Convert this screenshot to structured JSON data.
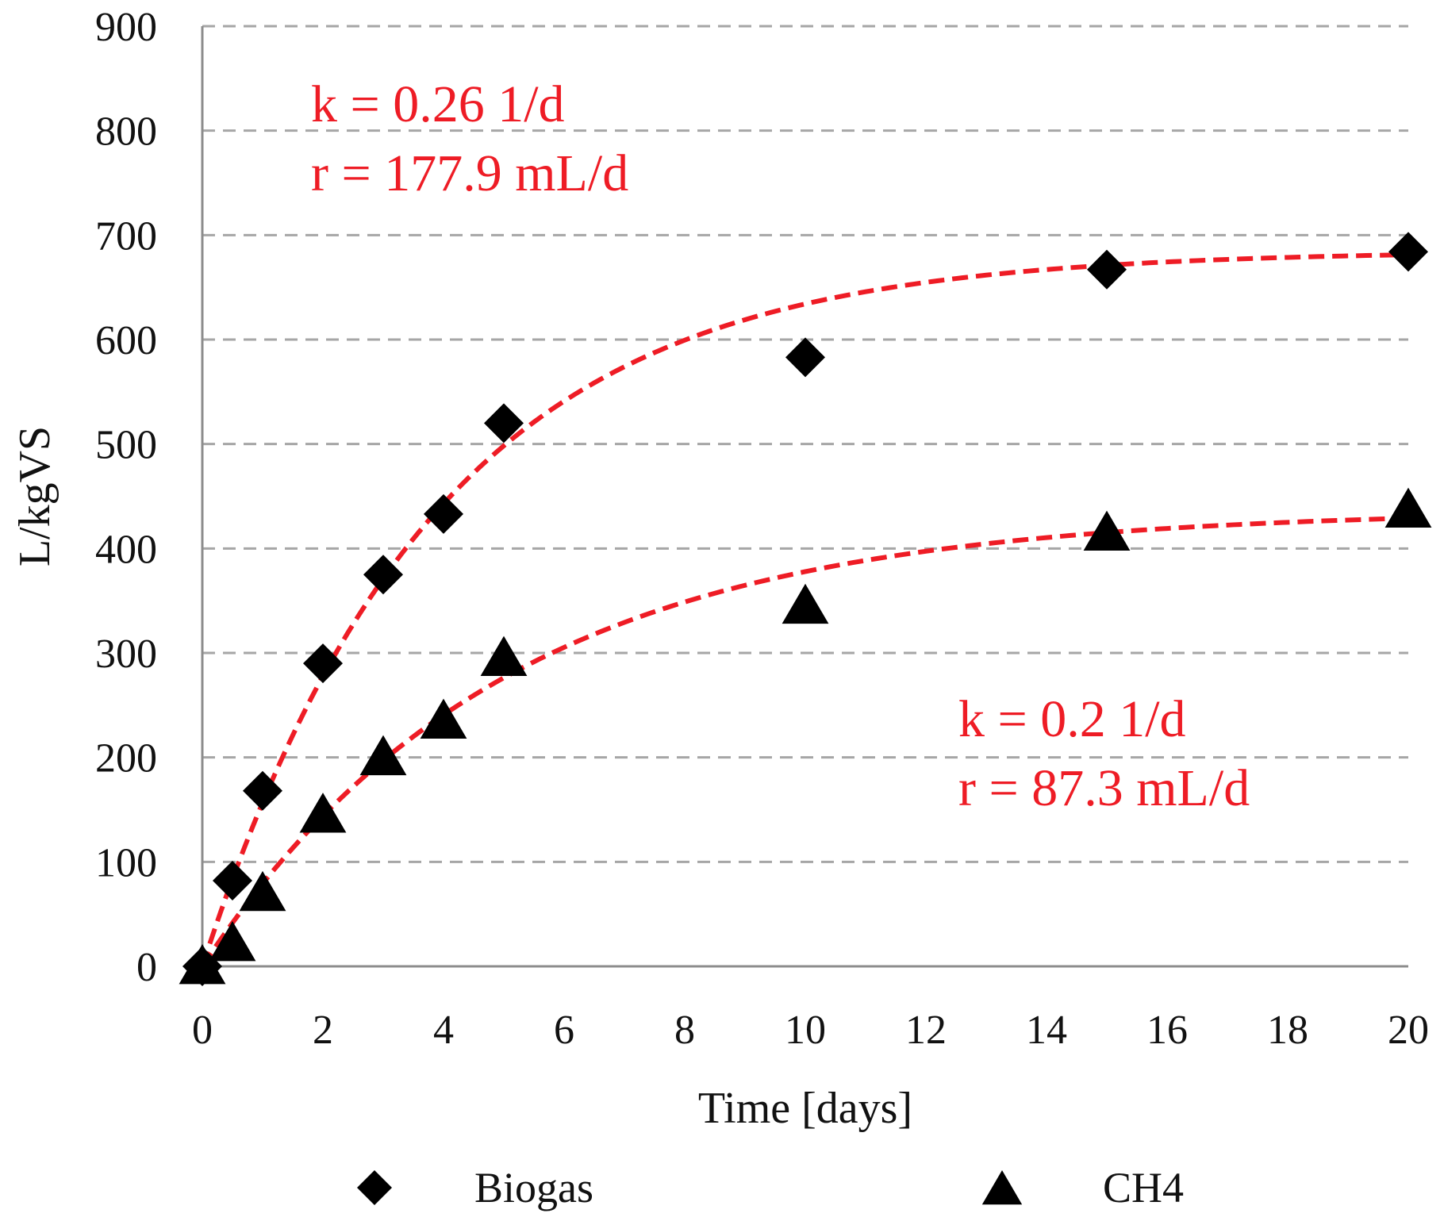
{
  "chart_data": {
    "type": "scatter",
    "title": "",
    "xlabel": "Time [days]",
    "ylabel": "L/kgVS",
    "xlim": [
      0,
      20
    ],
    "ylim": [
      0,
      900
    ],
    "xticks": [
      0,
      2,
      4,
      6,
      8,
      10,
      12,
      14,
      16,
      18,
      20
    ],
    "yticks": [
      0,
      100,
      200,
      300,
      400,
      500,
      600,
      700,
      800,
      900
    ],
    "grid": "horizontal dashed",
    "legend_position": "bottom",
    "series": [
      {
        "name": "Biogas",
        "marker": "diamond",
        "color": "#000000",
        "points": [
          {
            "x": 0,
            "y": 0
          },
          {
            "x": 0.5,
            "y": 82
          },
          {
            "x": 1,
            "y": 168
          },
          {
            "x": 2,
            "y": 290
          },
          {
            "x": 3,
            "y": 375
          },
          {
            "x": 4,
            "y": 433
          },
          {
            "x": 5,
            "y": 520
          },
          {
            "x": 10,
            "y": 583
          },
          {
            "x": 15,
            "y": 667
          },
          {
            "x": 20,
            "y": 684
          }
        ],
        "fit": {
          "style": "dashed",
          "color": "#ee1c25",
          "asymptote": 685,
          "k": 0.26
        },
        "annotation": [
          "k = 0.26 1/d",
          "r = 177.9 mL/d"
        ]
      },
      {
        "name": "CH4",
        "marker": "triangle",
        "color": "#000000",
        "points": [
          {
            "x": 0,
            "y": 0
          },
          {
            "x": 0.5,
            "y": 22
          },
          {
            "x": 1,
            "y": 70
          },
          {
            "x": 2,
            "y": 145
          },
          {
            "x": 3,
            "y": 200
          },
          {
            "x": 4,
            "y": 235
          },
          {
            "x": 5,
            "y": 295
          },
          {
            "x": 10,
            "y": 345
          },
          {
            "x": 15,
            "y": 415
          },
          {
            "x": 20,
            "y": 437
          }
        ],
        "fit": {
          "style": "dashed",
          "color": "#ee1c25",
          "asymptote": 437,
          "k": 0.2
        },
        "annotation": [
          "k = 0.2 1/d",
          "r = 87.3 mL/d"
        ]
      }
    ]
  }
}
